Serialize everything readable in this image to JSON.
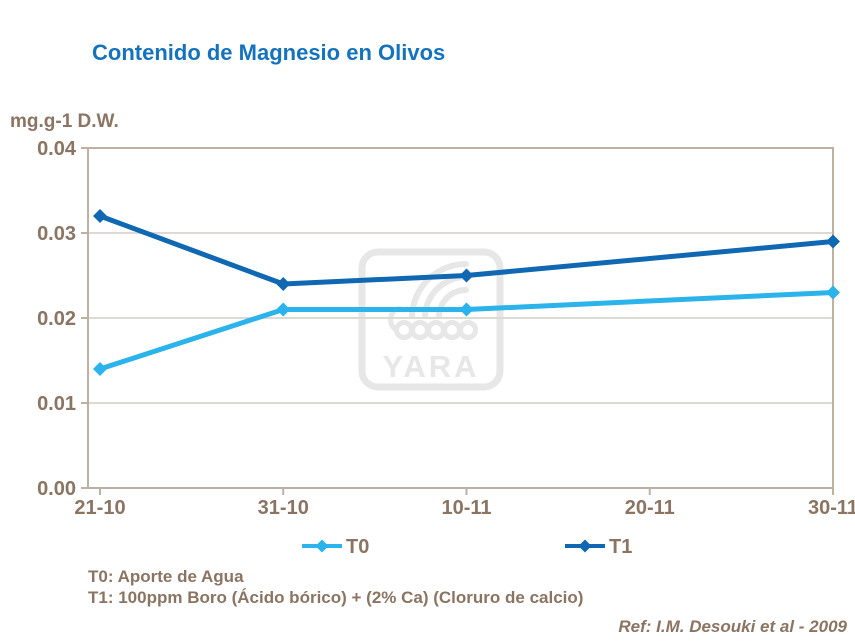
{
  "title": "Contenido de Magnesio en Olivos",
  "chart_data": {
    "type": "line",
    "title": "Contenido de Magnesio en Olivos",
    "unit_label": "mg.g-1 D.W.",
    "categories": [
      "21-10",
      "31-10",
      "10-11",
      "20-11",
      "30-11"
    ],
    "series": [
      {
        "name": "T0",
        "color": "#2BB3EB",
        "values": [
          0.014,
          0.021,
          0.021,
          null,
          0.023
        ]
      },
      {
        "name": "T1",
        "color": "#1068B2",
        "values": [
          0.032,
          0.024,
          0.025,
          null,
          0.029
        ]
      }
    ],
    "ylim": [
      0,
      0.04
    ],
    "ytick_labels": [
      "0.00",
      "0.01",
      "0.02",
      "0.03",
      "0.04"
    ],
    "grid": true,
    "marker": "diamond",
    "legend_position": "bottom"
  },
  "watermark": {
    "label": "YARA"
  },
  "footnotes": {
    "t0": "T0: Aporte de Agua",
    "t1": "T1: 100ppm Boro (Ácido bórico) + (2% Ca) (Cloruro de calcio)"
  },
  "reference": "Ref: I.M. Desouki et al - 2009",
  "colors": {
    "title_blue": "#1573BD",
    "text_brown": "#8B7462",
    "axis": "#BFB0A2",
    "gridline": "#DDDAD6",
    "series_t0": "#2BB3EB",
    "series_t1": "#1068B2",
    "watermark_gray": "#E7E7E7"
  }
}
